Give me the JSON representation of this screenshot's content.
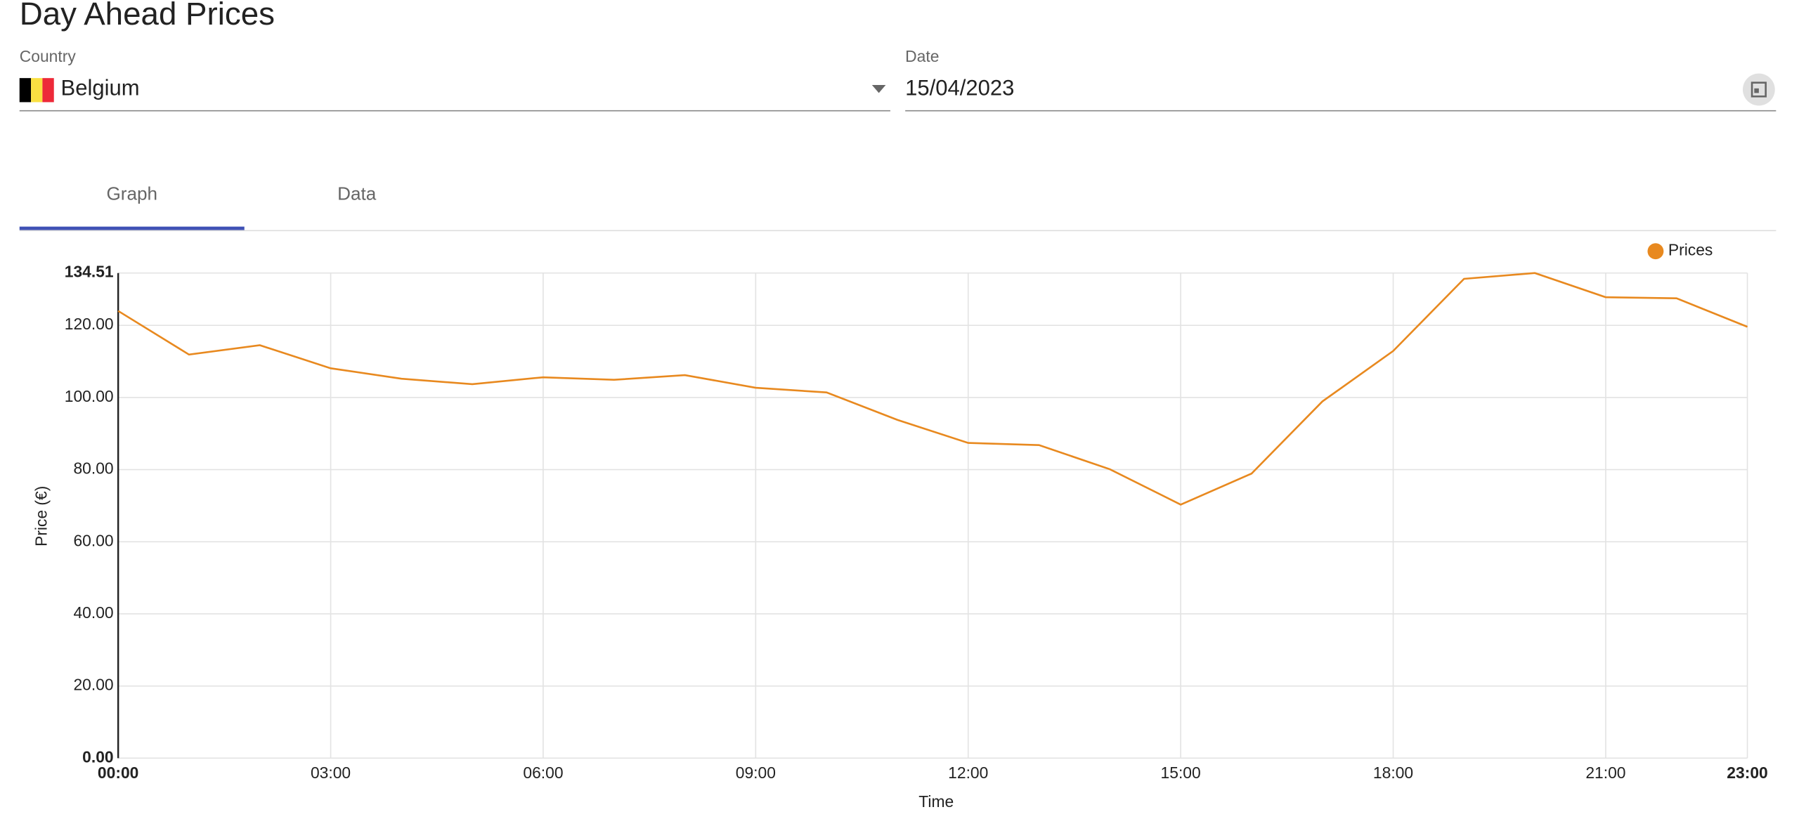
{
  "header": {
    "title": "Day Ahead Prices"
  },
  "form": {
    "country": {
      "label": "Country",
      "value": "Belgium"
    },
    "date": {
      "label": "Date",
      "value": "15/04/2023"
    }
  },
  "tabs": [
    "Graph",
    "Data"
  ],
  "chart_data": {
    "type": "line",
    "xlabel": "Time",
    "ylabel": "Price (€)",
    "categories": [
      "00:00",
      null,
      null,
      "03:00",
      null,
      null,
      "06:00",
      null,
      null,
      "09:00",
      null,
      null,
      "12:00",
      null,
      null,
      "15:00",
      null,
      null,
      "18:00",
      null,
      null,
      "21:00",
      null,
      "23:00"
    ],
    "series": [
      {
        "name": "Prices",
        "color": "#e8891f",
        "values": [
          124.0,
          111.9,
          114.5,
          108.1,
          105.2,
          103.7,
          105.6,
          104.9,
          106.2,
          102.7,
          101.4,
          93.8,
          87.4,
          86.8,
          80.1,
          70.3,
          78.9,
          98.9,
          112.9,
          132.9,
          134.51,
          127.8,
          127.5,
          119.6
        ]
      }
    ],
    "ylim": [
      0,
      134.51
    ],
    "yticks": [
      {
        "value": 0,
        "label": "0.00"
      },
      {
        "value": 20,
        "label": "20.00"
      },
      {
        "value": 40,
        "label": "40.00"
      },
      {
        "value": 60,
        "label": "60.00"
      },
      {
        "value": 80,
        "label": "80.00"
      },
      {
        "value": 100,
        "label": "100.00"
      },
      {
        "value": 120,
        "label": "120.00"
      },
      134.51
    ],
    "grid": true
  }
}
